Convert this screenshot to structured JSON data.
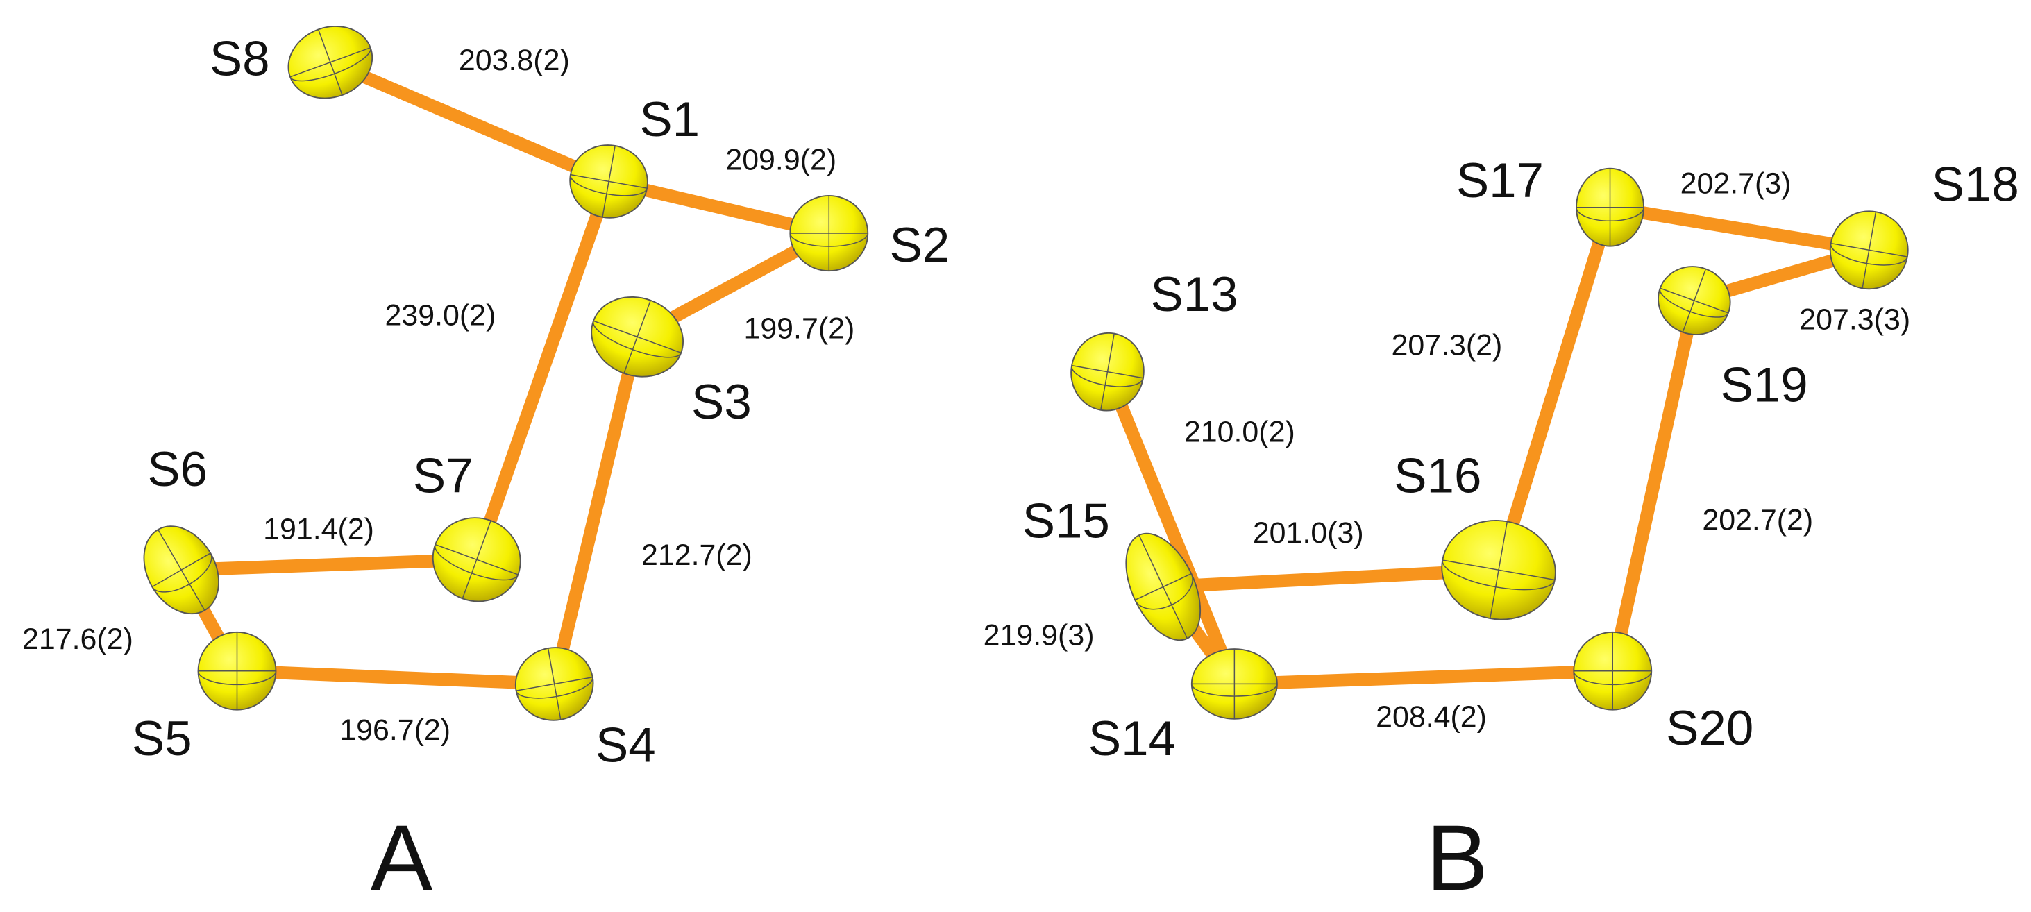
{
  "panels": [
    {
      "label": "A",
      "atoms": [
        "S8",
        "S1",
        "S2",
        "S3",
        "S4",
        "S5",
        "S6",
        "S7"
      ],
      "bonds": [
        "203.8(2)",
        "209.9(2)",
        "199.7(2)",
        "212.7(2)",
        "196.7(2)",
        "217.6(2)",
        "191.4(2)",
        "239.0(2)"
      ]
    },
    {
      "label": "B",
      "atoms": [
        "S13",
        "S14",
        "S15",
        "S16",
        "S17",
        "S18",
        "S19",
        "S20"
      ],
      "bonds": [
        "210.0(2)",
        "219.9(3)",
        "201.0(3)",
        "207.3(2)",
        "202.7(3)",
        "207.3(3)",
        "202.7(2)",
        "208.4(2)"
      ]
    }
  ]
}
